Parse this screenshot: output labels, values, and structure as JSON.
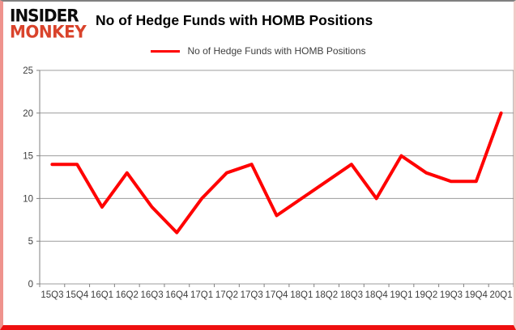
{
  "logo": {
    "line1": "INSIDER",
    "line2": "MONKEY",
    "accent_color": "#d9432b"
  },
  "header": {
    "title": "No of Hedge Funds with HOMB Positions"
  },
  "legend": {
    "label": "No of Hedge Funds with HOMB Positions",
    "swatch_color": "#ff0000"
  },
  "chart_data": {
    "type": "line",
    "title": "No of Hedge Funds with HOMB Positions",
    "series": [
      {
        "name": "No of Hedge Funds with HOMB Positions",
        "values": [
          14,
          14,
          9,
          13,
          9,
          6,
          10,
          13,
          14,
          8,
          10,
          12,
          14,
          10,
          15,
          13,
          12,
          12,
          20
        ]
      }
    ],
    "categories": [
      "15Q3",
      "15Q4",
      "16Q1",
      "16Q2",
      "16Q3",
      "16Q4",
      "17Q1",
      "17Q2",
      "17Q3",
      "17Q4",
      "18Q1",
      "18Q2",
      "18Q3",
      "18Q4",
      "19Q1",
      "19Q2",
      "19Q3",
      "19Q4",
      "20Q1"
    ],
    "xlabel": "",
    "ylabel": "",
    "ylim": [
      0,
      25
    ],
    "yticks": [
      0,
      5,
      10,
      15,
      20,
      25
    ],
    "grid": true,
    "legend_position": "top-center",
    "line_color": "#ff0000",
    "grid_color": "#9c9c9c",
    "axis_color": "#808080"
  }
}
